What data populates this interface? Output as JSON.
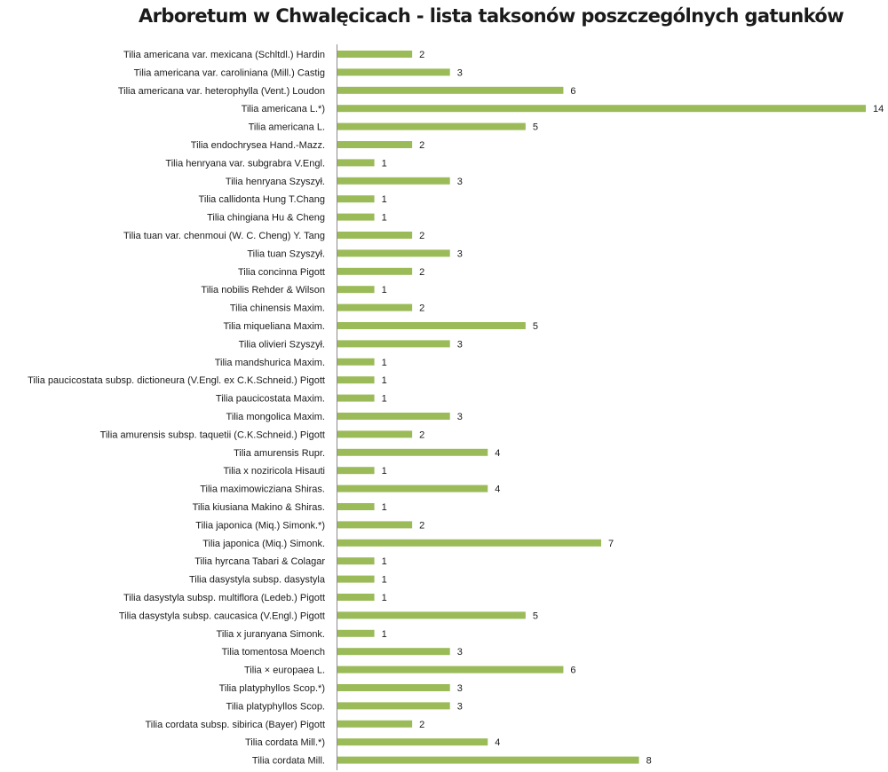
{
  "chart_data": {
    "type": "bar",
    "orientation": "horizontal",
    "title": "Arboretum w Chwalęcicach - lista taksonów poszczególnych gatunków",
    "categories": [
      "Tilia americana var. mexicana (Schltdl.) Hardin",
      "Tilia americana var. caroliniana (Mill.) Castig",
      "Tilia americana var. heterophylla (Vent.) Loudon",
      "Tilia americana L.*)",
      "Tilia americana L.",
      "Tilia endochrysea Hand.-Mazz.",
      "Tilia henryana var. subgrabra V.Engl.",
      "Tilia henryana Szyszył.",
      "Tilia callidonta Hung T.Chang",
      "Tilia chingiana Hu & Cheng",
      "Tilia tuan var. chenmoui (W. C. Cheng) Y. Tang",
      "Tilia tuan Szyszył.",
      "Tilia concinna Pigott",
      "Tilia nobilis Rehder & Wilson",
      "Tilia chinensis Maxim.",
      "Tilia miqueliana Maxim.",
      "Tilia olivieri Szyszył.",
      "Tilia mandshurica Maxim.",
      "Tilia paucicostata subsp. dictioneura (V.Engl. ex C.K.Schneid.) Pigott",
      "Tilia paucicostata Maxim.",
      "Tilia mongolica Maxim.",
      "Tilia amurensis subsp. taquetii (C.K.Schneid.) Pigott",
      "Tilia amurensis Rupr.",
      "Tilia x noziricola Hisauti",
      "Tilia maximowicziana Shiras.",
      "Tilia kiusiana Makino & Shiras.",
      "Tilia japonica (Miq.) Simonk.*)",
      "Tilia japonica (Miq.) Simonk.",
      "Tilia hyrcana Tabari & Colagar",
      "Tilia dasystyla subsp. dasystyla",
      "Tilia dasystyla subsp. multiflora (Ledeb.) Pigott",
      "Tilia dasystyla subsp. caucasica (V.Engl.) Pigott",
      "Tilia x juranyana Simonk.",
      "Tilia tomentosa Moench",
      "Tilia × europaea L.",
      "Tilia platyphyllos Scop.*)",
      "Tilia platyphyllos Scop.",
      "Tilia cordata subsp. sibirica (Bayer) Pigott",
      "Tilia cordata Mill.*)",
      "Tilia cordata Mill."
    ],
    "values": [
      2,
      3,
      6,
      14,
      5,
      2,
      1,
      3,
      1,
      1,
      2,
      3,
      2,
      1,
      2,
      5,
      3,
      1,
      1,
      1,
      3,
      2,
      4,
      1,
      4,
      1,
      2,
      7,
      1,
      1,
      1,
      5,
      1,
      3,
      6,
      3,
      3,
      2,
      4,
      8
    ],
    "xlim": [
      0,
      14
    ],
    "bar_color": "#9bbb59",
    "axis_color": "#8c8c8c",
    "data_labels": true,
    "grid": false,
    "legend": "none"
  }
}
